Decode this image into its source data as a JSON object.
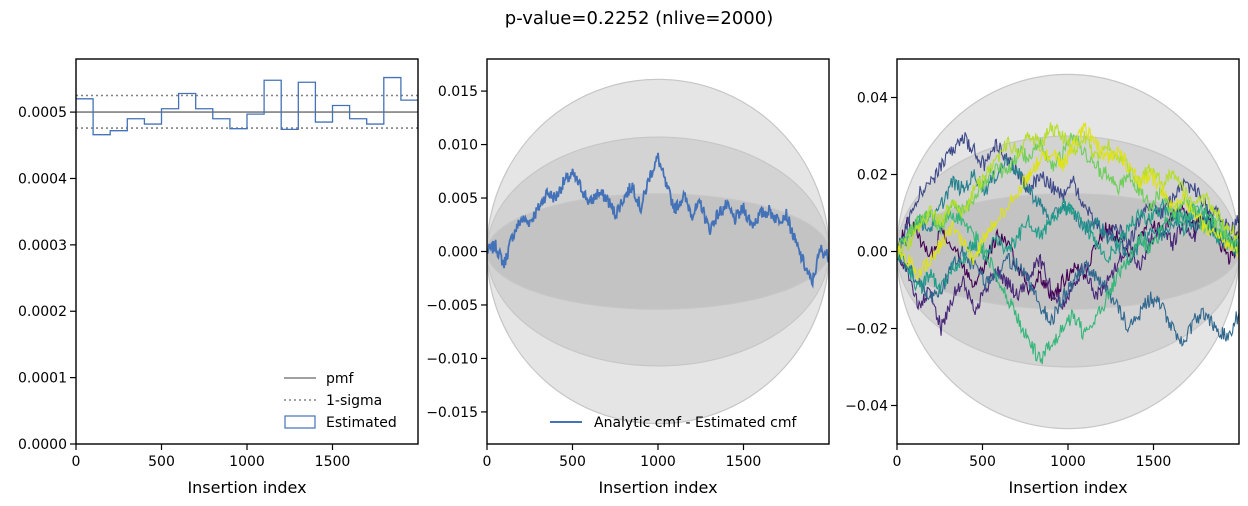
{
  "figure_title": "p-value=0.2252 (nlive=2000)",
  "colors": {
    "estimated": "#4472b8",
    "pmf": "#808080",
    "band_outer": "#e4e4e4",
    "band_mid": "#d2d2d2",
    "band_inner": "#c2c2c2"
  },
  "chart_data": [
    {
      "type": "step",
      "title": "",
      "xlabel": "Insertion index",
      "ylabel": "",
      "xlim": [
        0,
        2000
      ],
      "ylim": [
        0,
        0.00058
      ],
      "xticks": [
        "0",
        "500",
        "1000",
        "1500"
      ],
      "yticks": [
        "0.0000",
        "0.0001",
        "0.0002",
        "0.0003",
        "0.0004",
        "0.0005"
      ],
      "lines": {
        "pmf": 0.0005,
        "sigma_upper": 0.000525,
        "sigma_lower": 0.000476
      },
      "bin_edges": [
        0,
        100,
        200,
        300,
        400,
        500,
        600,
        700,
        800,
        900,
        1000,
        1100,
        1200,
        1300,
        1400,
        1500,
        1600,
        1700,
        1800,
        1900,
        2000
      ],
      "estimated": [
        0.00052,
        0.000466,
        0.000472,
        0.00049,
        0.000482,
        0.000505,
        0.000528,
        0.000505,
        0.00049,
        0.000475,
        0.000497,
        0.000548,
        0.000474,
        0.000545,
        0.000485,
        0.00051,
        0.00049,
        0.000482,
        0.000552,
        0.000518,
        0.000475
      ],
      "legend": {
        "position": "lower-right",
        "entries": [
          "pmf",
          "1-sigma",
          "Estimated"
        ]
      }
    },
    {
      "type": "line",
      "title": "",
      "xlabel": "Insertion index",
      "ylabel": "",
      "xlim": [
        0,
        2000
      ],
      "ylim": [
        -0.018,
        0.018
      ],
      "xticks": [
        "0",
        "500",
        "1000",
        "1500"
      ],
      "yticks": [
        "−0.015",
        "−0.010",
        "−0.005",
        "0.000",
        "0.005",
        "0.010",
        "0.015"
      ],
      "bands": [
        0.0161,
        0.0107,
        0.0054
      ],
      "series": [
        {
          "name": "Analytic cmf - Estimated cmf",
          "x": [
            0,
            50,
            100,
            150,
            200,
            250,
            300,
            350,
            400,
            450,
            500,
            550,
            600,
            650,
            700,
            750,
            800,
            850,
            900,
            950,
            1000,
            1050,
            1100,
            1150,
            1200,
            1250,
            1300,
            1350,
            1400,
            1450,
            1500,
            1550,
            1600,
            1650,
            1700,
            1750,
            1800,
            1850,
            1900,
            1950,
            2000
          ],
          "y": [
            0.0,
            0.0005,
            -0.0012,
            0.0015,
            0.003,
            0.0028,
            0.004,
            0.0055,
            0.005,
            0.0065,
            0.0072,
            0.006,
            0.0045,
            0.0055,
            0.005,
            0.0035,
            0.005,
            0.0062,
            0.004,
            0.007,
            0.0088,
            0.006,
            0.004,
            0.0052,
            0.0035,
            0.0045,
            0.002,
            0.0035,
            0.0043,
            0.003,
            0.004,
            0.0025,
            0.0035,
            0.0038,
            0.003,
            0.0035,
            0.001,
            -0.001,
            -0.003,
            0.0002,
            -0.0005
          ]
        }
      ],
      "legend": {
        "position": "lower-right",
        "entries": [
          "Analytic cmf - Estimated cmf"
        ]
      }
    },
    {
      "type": "line",
      "title": "",
      "xlabel": "Insertion index",
      "ylabel": "",
      "xlim": [
        0,
        2000
      ],
      "ylim": [
        -0.05,
        0.05
      ],
      "xticks": [
        "0",
        "500",
        "1000",
        "1500"
      ],
      "yticks": [
        "−0.04",
        "−0.02",
        "0.00",
        "0.02",
        "0.04"
      ],
      "bands": [
        0.046,
        0.03,
        0.015
      ],
      "series": [
        {
          "color": "#440154",
          "y": [
            0.0,
            0.008,
            0.004,
            -0.002,
            0.006,
            0.002,
            -0.004,
            -0.008,
            -0.003,
            0.004,
            0.002,
            -0.004,
            -0.01,
            -0.006,
            -0.012,
            -0.008,
            -0.004,
            -0.006,
            0.002,
            0.006,
            0.004,
            -0.002,
            0.003,
            0.008,
            0.005,
            0.009,
            0.012,
            0.006,
            0.01,
            0.004,
            -0.002,
            0.001
          ]
        },
        {
          "color": "#482878",
          "y": [
            0.0,
            -0.005,
            -0.015,
            -0.01,
            -0.02,
            -0.012,
            -0.008,
            -0.015,
            -0.01,
            -0.005,
            -0.008,
            -0.012,
            -0.006,
            -0.002,
            -0.01,
            -0.014,
            -0.008,
            -0.004,
            -0.012,
            -0.008,
            -0.003,
            0.002,
            -0.004,
            0.003,
            0.006,
            0.002,
            0.008,
            0.004,
            0.009,
            0.005,
            0.002,
            0.005
          ]
        },
        {
          "color": "#3e4989",
          "y": [
            0.0,
            0.008,
            0.015,
            0.018,
            0.022,
            0.026,
            0.03,
            0.026,
            0.022,
            0.028,
            0.024,
            0.02,
            0.016,
            0.02,
            0.017,
            0.014,
            0.018,
            0.012,
            0.008,
            0.004,
            0.006,
            0.002,
            0.008,
            0.012,
            0.01,
            0.014,
            0.018,
            0.016,
            0.012,
            0.01,
            0.006,
            0.008
          ]
        },
        {
          "color": "#31688e",
          "y": [
            0.0,
            -0.004,
            -0.008,
            -0.012,
            -0.01,
            -0.004,
            0.0,
            -0.004,
            -0.008,
            -0.006,
            -0.002,
            -0.004,
            -0.008,
            -0.014,
            -0.018,
            -0.012,
            -0.008,
            -0.004,
            -0.006,
            -0.01,
            -0.014,
            -0.02,
            -0.016,
            -0.012,
            -0.014,
            -0.02,
            -0.024,
            -0.018,
            -0.016,
            -0.02,
            -0.022,
            -0.016
          ]
        },
        {
          "color": "#26828e",
          "y": [
            0.0,
            0.004,
            0.008,
            0.006,
            0.012,
            0.018,
            0.016,
            0.02,
            0.016,
            0.02,
            0.024,
            0.02,
            0.016,
            0.012,
            0.008,
            0.012,
            0.01,
            0.006,
            0.008,
            0.004,
            0.002,
            -0.002,
            0.002,
            0.006,
            0.004,
            0.008,
            0.01,
            0.006,
            0.008,
            0.004,
            0.002,
            0.004
          ]
        },
        {
          "color": "#1f9e89",
          "y": [
            0.0,
            -0.004,
            -0.01,
            -0.006,
            -0.01,
            -0.004,
            -0.002,
            0.002,
            -0.002,
            0.004,
            0.0,
            0.004,
            0.008,
            0.004,
            0.008,
            0.012,
            0.01,
            0.006,
            0.002,
            -0.002,
            0.002,
            0.006,
            0.01,
            0.008,
            0.012,
            0.01,
            0.006,
            0.01,
            0.008,
            0.004,
            0.002,
            0.0
          ]
        },
        {
          "color": "#35b779",
          "y": [
            0.0,
            0.004,
            0.008,
            0.01,
            0.006,
            0.01,
            0.008,
            0.004,
            0.0,
            -0.006,
            -0.012,
            -0.018,
            -0.024,
            -0.028,
            -0.024,
            -0.02,
            -0.016,
            -0.022,
            -0.018,
            -0.012,
            -0.006,
            -0.002,
            0.004,
            0.0,
            0.006,
            0.01,
            0.008,
            0.012,
            0.01,
            0.006,
            0.004,
            0.002
          ]
        },
        {
          "color": "#6ece58",
          "y": [
            0.0,
            0.004,
            0.008,
            0.01,
            0.006,
            0.012,
            0.01,
            0.014,
            0.018,
            0.022,
            0.02,
            0.026,
            0.024,
            0.028,
            0.022,
            0.026,
            0.03,
            0.026,
            0.022,
            0.02,
            0.016,
            0.02,
            0.016,
            0.012,
            0.016,
            0.01,
            0.014,
            0.01,
            0.006,
            0.008,
            0.004,
            0.0
          ]
        },
        {
          "color": "#b5de2b",
          "y": [
            0.0,
            0.002,
            0.006,
            0.01,
            0.008,
            0.012,
            0.01,
            0.016,
            0.02,
            0.024,
            0.028,
            0.026,
            0.03,
            0.028,
            0.032,
            0.03,
            0.026,
            0.03,
            0.024,
            0.028,
            0.024,
            0.022,
            0.018,
            0.022,
            0.018,
            0.02,
            0.016,
            0.012,
            0.014,
            0.01,
            0.006,
            0.004
          ]
        },
        {
          "color": "#dde318",
          "y": [
            0.0,
            -0.002,
            -0.006,
            -0.002,
            0.002,
            0.006,
            0.002,
            -0.002,
            0.004,
            0.008,
            0.012,
            0.016,
            0.02,
            0.024,
            0.026,
            0.022,
            0.028,
            0.032,
            0.028,
            0.024,
            0.026,
            0.022,
            0.018,
            0.02,
            0.016,
            0.012,
            0.014,
            0.01,
            0.006,
            0.004,
            0.002,
            0.0
          ]
        }
      ]
    }
  ]
}
